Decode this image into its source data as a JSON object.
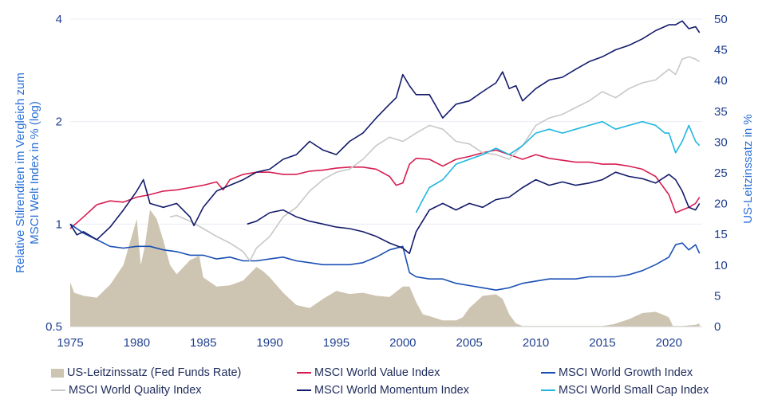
{
  "chart_data": {
    "type": "line",
    "title": "",
    "xlabel": "",
    "ylabel_left": "Relative Stilrenditen im Vergleich zum MSCI Welt Index in % (log)",
    "ylabel_right": "US-Leitzinssatz in %",
    "x_ticks": [
      1975,
      1980,
      1985,
      1990,
      1995,
      2000,
      2005,
      2010,
      2015,
      2020
    ],
    "xlim": [
      1975,
      2022.5
    ],
    "y_left_scale": "log",
    "y_left_ticks": [
      0.5,
      1,
      2,
      4
    ],
    "y_left_lim": [
      0.5,
      4
    ],
    "y_right_ticks": [
      0,
      5,
      10,
      15,
      20,
      25,
      30,
      35,
      40,
      45,
      50
    ],
    "y_right_lim": [
      0,
      50
    ],
    "legend_position": "bottom",
    "colors": {
      "fed": "#cdc4b1",
      "value": "#d81e50",
      "growth": "#1a4fb3",
      "quality": "#c8c8c8",
      "momentum": "#131b6b",
      "smallcap": "#1fb6e0"
    },
    "fed_funds": {
      "name": "US-Leitzinssatz (Fed Funds Rate)",
      "axis": "right",
      "x": [
        1975,
        1975.3,
        1976,
        1977,
        1978,
        1979,
        1980,
        1980.3,
        1980.6,
        1981,
        1981.5,
        1982,
        1982.5,
        1983,
        1984,
        1984.7,
        1985,
        1986,
        1987,
        1988,
        1989,
        1989.5,
        1990,
        1991,
        1992,
        1993,
        1994,
        1995,
        1996,
        1997,
        1998,
        1999,
        2000,
        2000.5,
        2001,
        2001.5,
        2002,
        2003,
        2004,
        2004.5,
        2005,
        2006,
        2007,
        2007.5,
        2008,
        2008.5,
        2009,
        2010,
        2015,
        2015.9,
        2016,
        2017,
        2018,
        2019,
        2019.5,
        2020,
        2020.3,
        2021,
        2022,
        2022.3
      ],
      "values": [
        7.2,
        5.5,
        5.0,
        4.7,
        6.8,
        10.0,
        17.5,
        10.0,
        13.0,
        19.0,
        17.5,
        14.0,
        10.0,
        8.5,
        10.8,
        11.5,
        8.0,
        6.5,
        6.7,
        7.5,
        9.7,
        9.0,
        8.0,
        5.5,
        3.5,
        3.0,
        4.5,
        5.8,
        5.3,
        5.5,
        5.0,
        4.8,
        6.5,
        6.5,
        4.0,
        2.0,
        1.7,
        1.0,
        1.0,
        1.5,
        3.0,
        5.0,
        5.25,
        4.5,
        2.0,
        0.5,
        0.1,
        0.1,
        0.1,
        0.4,
        0.5,
        1.2,
        2.2,
        2.4,
        2.0,
        1.5,
        0.1,
        0.1,
        0.3,
        0.5
      ]
    },
    "series": [
      {
        "name": "MSCI World Value Index",
        "key": "value",
        "x": [
          1975,
          1976,
          1977,
          1978,
          1979,
          1980,
          1981,
          1982,
          1983,
          1984,
          1985,
          1986,
          1986.5,
          1987,
          1988,
          1989,
          1990,
          1991,
          1992,
          1993,
          1994,
          1995,
          1996,
          1997,
          1998,
          1999,
          1999.5,
          2000,
          2000.5,
          2001,
          2002,
          2003,
          2004,
          2005,
          2006,
          2007,
          2008,
          2009,
          2010,
          2011,
          2012,
          2013,
          2014,
          2015,
          2016,
          2017,
          2018,
          2019,
          2020,
          2020.5,
          2021,
          2021.5,
          2022,
          2022.3
        ],
        "values": [
          0.97,
          1.05,
          1.14,
          1.17,
          1.16,
          1.2,
          1.22,
          1.25,
          1.26,
          1.28,
          1.3,
          1.33,
          1.26,
          1.35,
          1.4,
          1.42,
          1.42,
          1.4,
          1.4,
          1.43,
          1.44,
          1.46,
          1.47,
          1.47,
          1.45,
          1.38,
          1.3,
          1.32,
          1.5,
          1.56,
          1.55,
          1.48,
          1.55,
          1.58,
          1.62,
          1.65,
          1.6,
          1.55,
          1.6,
          1.56,
          1.54,
          1.52,
          1.52,
          1.5,
          1.5,
          1.48,
          1.45,
          1.38,
          1.22,
          1.08,
          1.1,
          1.12,
          1.15,
          1.2
        ]
      },
      {
        "name": "MSCI World Growth Index",
        "key": "growth",
        "x": [
          1975,
          1976,
          1977,
          1978,
          1979,
          1980,
          1981,
          1982,
          1983,
          1984,
          1985,
          1986,
          1987,
          1988,
          1989,
          1990,
          1991,
          1992,
          1993,
          1994,
          1995,
          1996,
          1997,
          1998,
          1999,
          2000,
          2000.5,
          2001,
          2002,
          2003,
          2004,
          2005,
          2006,
          2007,
          2008,
          2009,
          2010,
          2011,
          2012,
          2013,
          2014,
          2015,
          2016,
          2017,
          2018,
          2019,
          2020,
          2020.5,
          2021,
          2021.5,
          2022,
          2022.3
        ],
        "values": [
          1.0,
          0.94,
          0.9,
          0.86,
          0.85,
          0.86,
          0.86,
          0.84,
          0.83,
          0.81,
          0.81,
          0.79,
          0.8,
          0.78,
          0.78,
          0.79,
          0.8,
          0.78,
          0.77,
          0.76,
          0.76,
          0.76,
          0.77,
          0.8,
          0.84,
          0.86,
          0.72,
          0.7,
          0.69,
          0.69,
          0.67,
          0.66,
          0.65,
          0.64,
          0.65,
          0.67,
          0.68,
          0.69,
          0.69,
          0.69,
          0.7,
          0.7,
          0.7,
          0.71,
          0.73,
          0.76,
          0.8,
          0.87,
          0.88,
          0.84,
          0.87,
          0.82
        ]
      },
      {
        "name": "MSCI World Quality Index",
        "key": "quality",
        "x": [
          1982.5,
          1983,
          1984,
          1985,
          1986,
          1987,
          1988,
          1988.5,
          1989,
          1990,
          1991,
          1992,
          1993,
          1994,
          1995,
          1996,
          1997,
          1998,
          1999,
          2000,
          2001,
          2002,
          2003,
          2004,
          2005,
          2006,
          2007,
          2008,
          2009,
          2010,
          2011,
          2012,
          2013,
          2014,
          2015,
          2016,
          2017,
          2018,
          2019,
          2020,
          2020.5,
          2021,
          2021.5,
          2022,
          2022.3
        ],
        "values": [
          1.05,
          1.06,
          1.02,
          0.97,
          0.92,
          0.88,
          0.83,
          0.78,
          0.85,
          0.92,
          1.05,
          1.12,
          1.25,
          1.35,
          1.42,
          1.45,
          1.55,
          1.7,
          1.8,
          1.75,
          1.85,
          1.95,
          1.9,
          1.75,
          1.72,
          1.62,
          1.6,
          1.55,
          1.7,
          1.95,
          2.05,
          2.1,
          2.2,
          2.3,
          2.45,
          2.35,
          2.5,
          2.6,
          2.65,
          2.85,
          2.75,
          3.05,
          3.1,
          3.05,
          3.0
        ]
      },
      {
        "name": "MSCI World Momentum Index",
        "key": "momentum",
        "x": [
          1975,
          1975.5,
          1976,
          1977,
          1978,
          1979,
          1980,
          1980.5,
          1981,
          1982,
          1983,
          1984,
          1984.3,
          1985,
          1986,
          1987,
          1988,
          1989,
          1990,
          1991,
          1992,
          1993,
          1994,
          1995,
          1996,
          1997,
          1998,
          1999,
          1999.5,
          2000,
          2000.5,
          2001,
          2002,
          2003,
          2004,
          2005,
          2006,
          2007,
          2007.5,
          2008,
          2008.5,
          2009,
          2010,
          2011,
          2012,
          2013,
          2014,
          2015,
          2016,
          2017,
          2018,
          2019,
          2020,
          2020.5,
          2021,
          2021.5,
          2022,
          2022.3
        ],
        "values": [
          1.0,
          0.93,
          0.95,
          0.9,
          0.98,
          1.1,
          1.25,
          1.35,
          1.15,
          1.12,
          1.15,
          1.05,
          0.99,
          1.12,
          1.25,
          1.3,
          1.35,
          1.42,
          1.45,
          1.55,
          1.6,
          1.75,
          1.65,
          1.6,
          1.75,
          1.85,
          2.05,
          2.25,
          2.35,
          2.75,
          2.55,
          2.4,
          2.4,
          2.05,
          2.25,
          2.3,
          2.45,
          2.6,
          2.8,
          2.5,
          2.55,
          2.3,
          2.5,
          2.65,
          2.7,
          2.85,
          3.0,
          3.1,
          3.25,
          3.35,
          3.5,
          3.7,
          3.85,
          3.85,
          3.95,
          3.75,
          3.8,
          3.65
        ]
      },
      {
        "name": "MSCI World Momentum Index",
        "key": "momentum",
        "x": [
          1988.3,
          1989,
          1990,
          1991,
          1992,
          1993,
          1994,
          1995,
          1996,
          1997,
          1998,
          1999,
          2000,
          2000.5,
          2001,
          2002,
          2003,
          2004,
          2005,
          2006,
          2007,
          2008,
          2009,
          2010,
          2011,
          2012,
          2013,
          2014,
          2015,
          2016,
          2017,
          2018,
          2019,
          2020,
          2020.5,
          2021,
          2021.5,
          2022,
          2022.3
        ],
        "values": [
          1.0,
          1.02,
          1.08,
          1.1,
          1.05,
          1.02,
          1.0,
          0.98,
          0.97,
          0.95,
          0.92,
          0.88,
          0.85,
          0.82,
          0.95,
          1.1,
          1.15,
          1.1,
          1.15,
          1.12,
          1.18,
          1.2,
          1.28,
          1.35,
          1.3,
          1.33,
          1.3,
          1.32,
          1.35,
          1.42,
          1.38,
          1.36,
          1.32,
          1.4,
          1.35,
          1.25,
          1.12,
          1.1,
          1.15
        ]
      },
      {
        "name": "MSCI World Small Cap Index",
        "key": "smallcap",
        "x": [
          2001,
          2001.5,
          2002,
          2003,
          2004,
          2005,
          2006,
          2007,
          2008,
          2009,
          2010,
          2011,
          2012,
          2013,
          2014,
          2015,
          2016,
          2017,
          2018,
          2019,
          2019.7,
          2020,
          2020.5,
          2021,
          2021.5,
          2022,
          2022.3
        ],
        "values": [
          1.08,
          1.18,
          1.28,
          1.35,
          1.5,
          1.55,
          1.6,
          1.67,
          1.6,
          1.7,
          1.85,
          1.9,
          1.85,
          1.9,
          1.95,
          2.0,
          1.9,
          1.95,
          2.0,
          1.95,
          1.85,
          1.85,
          1.62,
          1.75,
          1.95,
          1.75,
          1.7
        ]
      }
    ],
    "legend": [
      {
        "key": "fed",
        "kind": "bar",
        "label": "US-Leitzinssatz (Fed Funds Rate)"
      },
      {
        "key": "value",
        "kind": "line",
        "label": "MSCI World Value Index"
      },
      {
        "key": "growth",
        "kind": "line",
        "label": "MSCI World Growth Index"
      },
      {
        "key": "quality",
        "kind": "line",
        "label": "MSCI World Quality Index"
      },
      {
        "key": "momentum",
        "kind": "line",
        "label": "MSCI World Momentum Index"
      },
      {
        "key": "smallcap",
        "kind": "line",
        "label": "MSCI World Small Cap Index"
      }
    ]
  }
}
